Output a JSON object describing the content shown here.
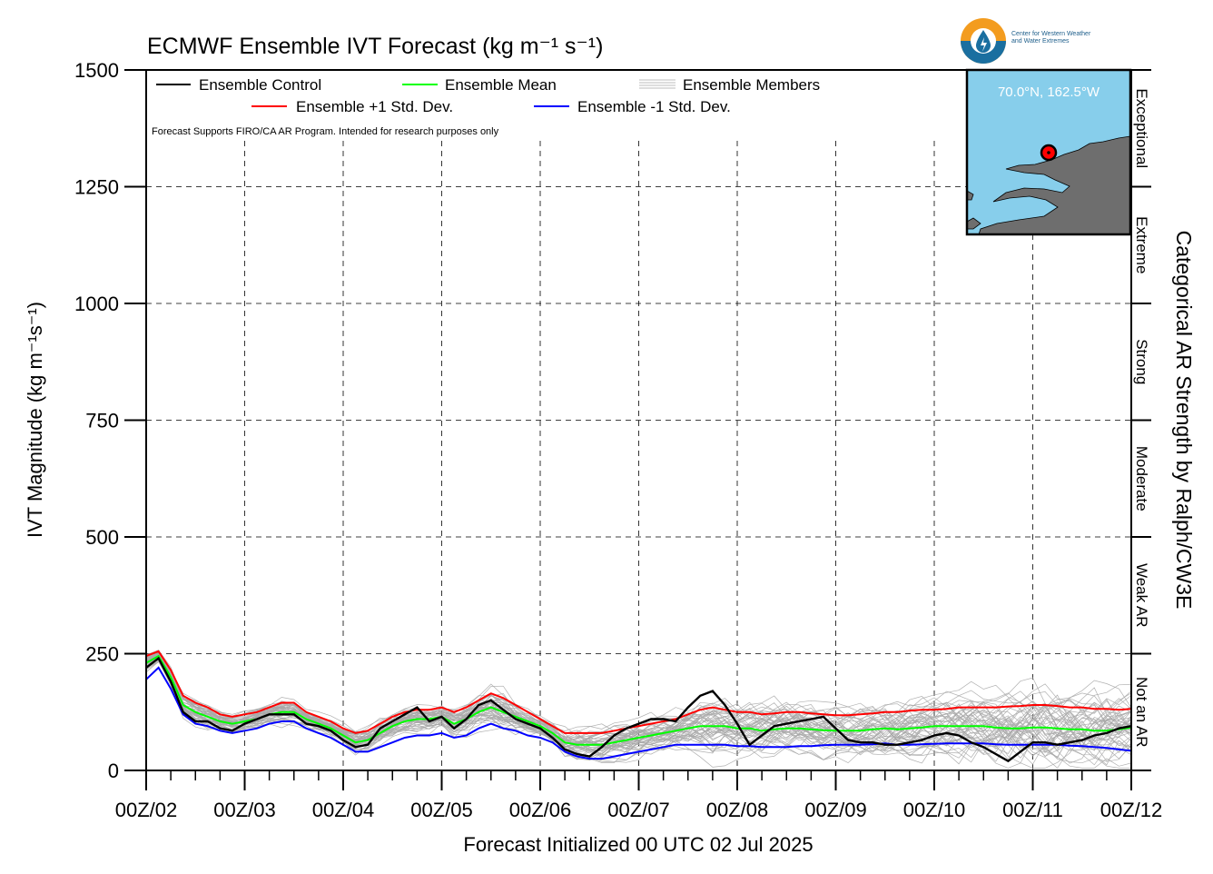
{
  "logo": {
    "line1": "Center for Western Weather",
    "line2": "and Water Extremes",
    "colors": {
      "orange": "#f39c1f",
      "blue": "#1a6fa0"
    }
  },
  "inset": {
    "location": "70.0°N, 162.5°W",
    "colors": {
      "water": "#87ceeb",
      "land": "#6e6e6e",
      "marker": "#ff0000"
    }
  },
  "chart_data": {
    "type": "line",
    "title": "ECMWF Ensemble IVT Forecast",
    "title_units": "(kg m⁻¹ s⁻¹)",
    "ylabel": "IVT Magnitude (kg m⁻¹s⁻¹)",
    "xlabel": "Forecast Initialized 00 UTC 02 Jul 2025",
    "right_label": "Categorical AR Strength by Ralph/CW3E",
    "note": "Forecast Supports FIRO/CA AR Program. Intended for research purposes only",
    "ylim": [
      0,
      1500
    ],
    "xlim": [
      0,
      240
    ],
    "yticks": [
      0,
      250,
      500,
      750,
      1000,
      1250,
      1500
    ],
    "x_tick_step_hours": 24,
    "x_minor_step_hours": 6,
    "x_tick_labels": [
      "00Z/02",
      "00Z/03",
      "00Z/04",
      "00Z/05",
      "00Z/06",
      "00Z/07",
      "00Z/08",
      "00Z/09",
      "00Z/10",
      "00Z/11",
      "00Z/12"
    ],
    "categories": [
      {
        "label": "Not an AR",
        "min": 0,
        "max": 250
      },
      {
        "label": "Weak AR",
        "min": 250,
        "max": 500
      },
      {
        "label": "Moderate",
        "min": 500,
        "max": 750
      },
      {
        "label": "Strong",
        "min": 750,
        "max": 1000
      },
      {
        "label": "Extreme",
        "min": 1000,
        "max": 1250
      },
      {
        "label": "Exceptional",
        "min": 1250,
        "max": 1500
      }
    ],
    "grid": true,
    "legend_position": "top-left",
    "legend": {
      "control": "Ensemble Control",
      "mean": "Ensemble Mean",
      "members": "Ensemble Members",
      "plus": "Ensemble +1 Std. Dev.",
      "minus": "Ensemble -1 Std. Dev."
    },
    "colors": {
      "control": "#000000",
      "mean": "#00ff00",
      "plus": "#ff0000",
      "minus": "#0000ff",
      "members": "#a9a9a9"
    },
    "member_count": 50,
    "x": [
      0,
      3,
      6,
      9,
      12,
      15,
      18,
      21,
      24,
      27,
      30,
      33,
      36,
      39,
      42,
      45,
      48,
      51,
      54,
      57,
      60,
      63,
      66,
      69,
      72,
      75,
      78,
      81,
      84,
      87,
      90,
      93,
      96,
      99,
      102,
      105,
      108,
      111,
      114,
      117,
      120,
      123,
      126,
      129,
      132,
      135,
      138,
      141,
      144,
      147,
      150,
      153,
      156,
      159,
      162,
      165,
      168,
      171,
      174,
      177,
      180,
      183,
      186,
      189,
      192,
      195,
      198,
      201,
      204,
      207,
      210,
      213,
      216,
      219,
      222,
      225,
      228,
      231,
      234,
      237,
      240
    ],
    "series": [
      {
        "key": "control",
        "name": "Ensemble Control",
        "values": [
          220,
          240,
          190,
          125,
          105,
          105,
          90,
          85,
          100,
          110,
          120,
          120,
          120,
          100,
          95,
          85,
          65,
          50,
          55,
          90,
          105,
          120,
          135,
          105,
          115,
          90,
          110,
          140,
          150,
          130,
          110,
          100,
          90,
          70,
          45,
          35,
          30,
          50,
          75,
          90,
          100,
          110,
          110,
          105,
          135,
          160,
          170,
          140,
          100,
          55,
          75,
          95,
          100,
          105,
          110,
          115,
          90,
          65,
          60,
          60,
          55,
          55,
          60,
          65,
          75,
          80,
          75,
          60,
          50,
          35,
          20,
          40,
          60,
          60,
          55,
          60,
          65,
          75,
          80,
          90,
          95
        ]
      },
      {
        "key": "mean",
        "name": "Ensemble Mean",
        "values": [
          230,
          245,
          200,
          140,
          125,
          115,
          105,
          100,
          105,
          110,
          120,
          125,
          125,
          110,
          100,
          90,
          75,
          60,
          65,
          80,
          95,
          105,
          110,
          110,
          115,
          100,
          110,
          125,
          135,
          125,
          115,
          105,
          95,
          80,
          60,
          55,
          55,
          55,
          60,
          65,
          70,
          75,
          80,
          85,
          90,
          95,
          95,
          95,
          90,
          90,
          85,
          88,
          90,
          90,
          88,
          86,
          85,
          85,
          85,
          88,
          90,
          88,
          90,
          92,
          95,
          95,
          95,
          95,
          95,
          92,
          90,
          90,
          92,
          92,
          90,
          88,
          88,
          85,
          85,
          88,
          92
        ]
      },
      {
        "key": "plus",
        "name": "Ensemble +1 Std. Dev.",
        "values": [
          245,
          255,
          215,
          160,
          145,
          135,
          120,
          115,
          120,
          125,
          135,
          145,
          145,
          125,
          115,
          105,
          90,
          80,
          85,
          100,
          115,
          125,
          130,
          130,
          135,
          125,
          135,
          150,
          165,
          155,
          140,
          125,
          110,
          95,
          80,
          80,
          80,
          80,
          85,
          90,
          95,
          100,
          105,
          110,
          120,
          130,
          135,
          130,
          125,
          125,
          120,
          122,
          125,
          125,
          122,
          120,
          118,
          118,
          120,
          122,
          125,
          125,
          128,
          130,
          130,
          132,
          135,
          135,
          135,
          135,
          137,
          138,
          140,
          140,
          138,
          135,
          135,
          132,
          132,
          130,
          132
        ]
      },
      {
        "key": "minus",
        "name": "Ensemble -1 Std. Dev.",
        "values": [
          195,
          220,
          175,
          120,
          100,
          95,
          85,
          80,
          85,
          90,
          100,
          105,
          105,
          90,
          80,
          70,
          55,
          40,
          40,
          50,
          60,
          70,
          75,
          75,
          80,
          70,
          75,
          90,
          100,
          90,
          85,
          75,
          70,
          60,
          40,
          30,
          25,
          25,
          30,
          35,
          40,
          45,
          50,
          55,
          55,
          55,
          55,
          55,
          52,
          52,
          50,
          50,
          50,
          52,
          52,
          54,
          55,
          55,
          55,
          56,
          58,
          55,
          55,
          56,
          57,
          58,
          58,
          58,
          58,
          56,
          55,
          55,
          55,
          55,
          55,
          53,
          52,
          50,
          48,
          45,
          42
        ]
      }
    ]
  }
}
